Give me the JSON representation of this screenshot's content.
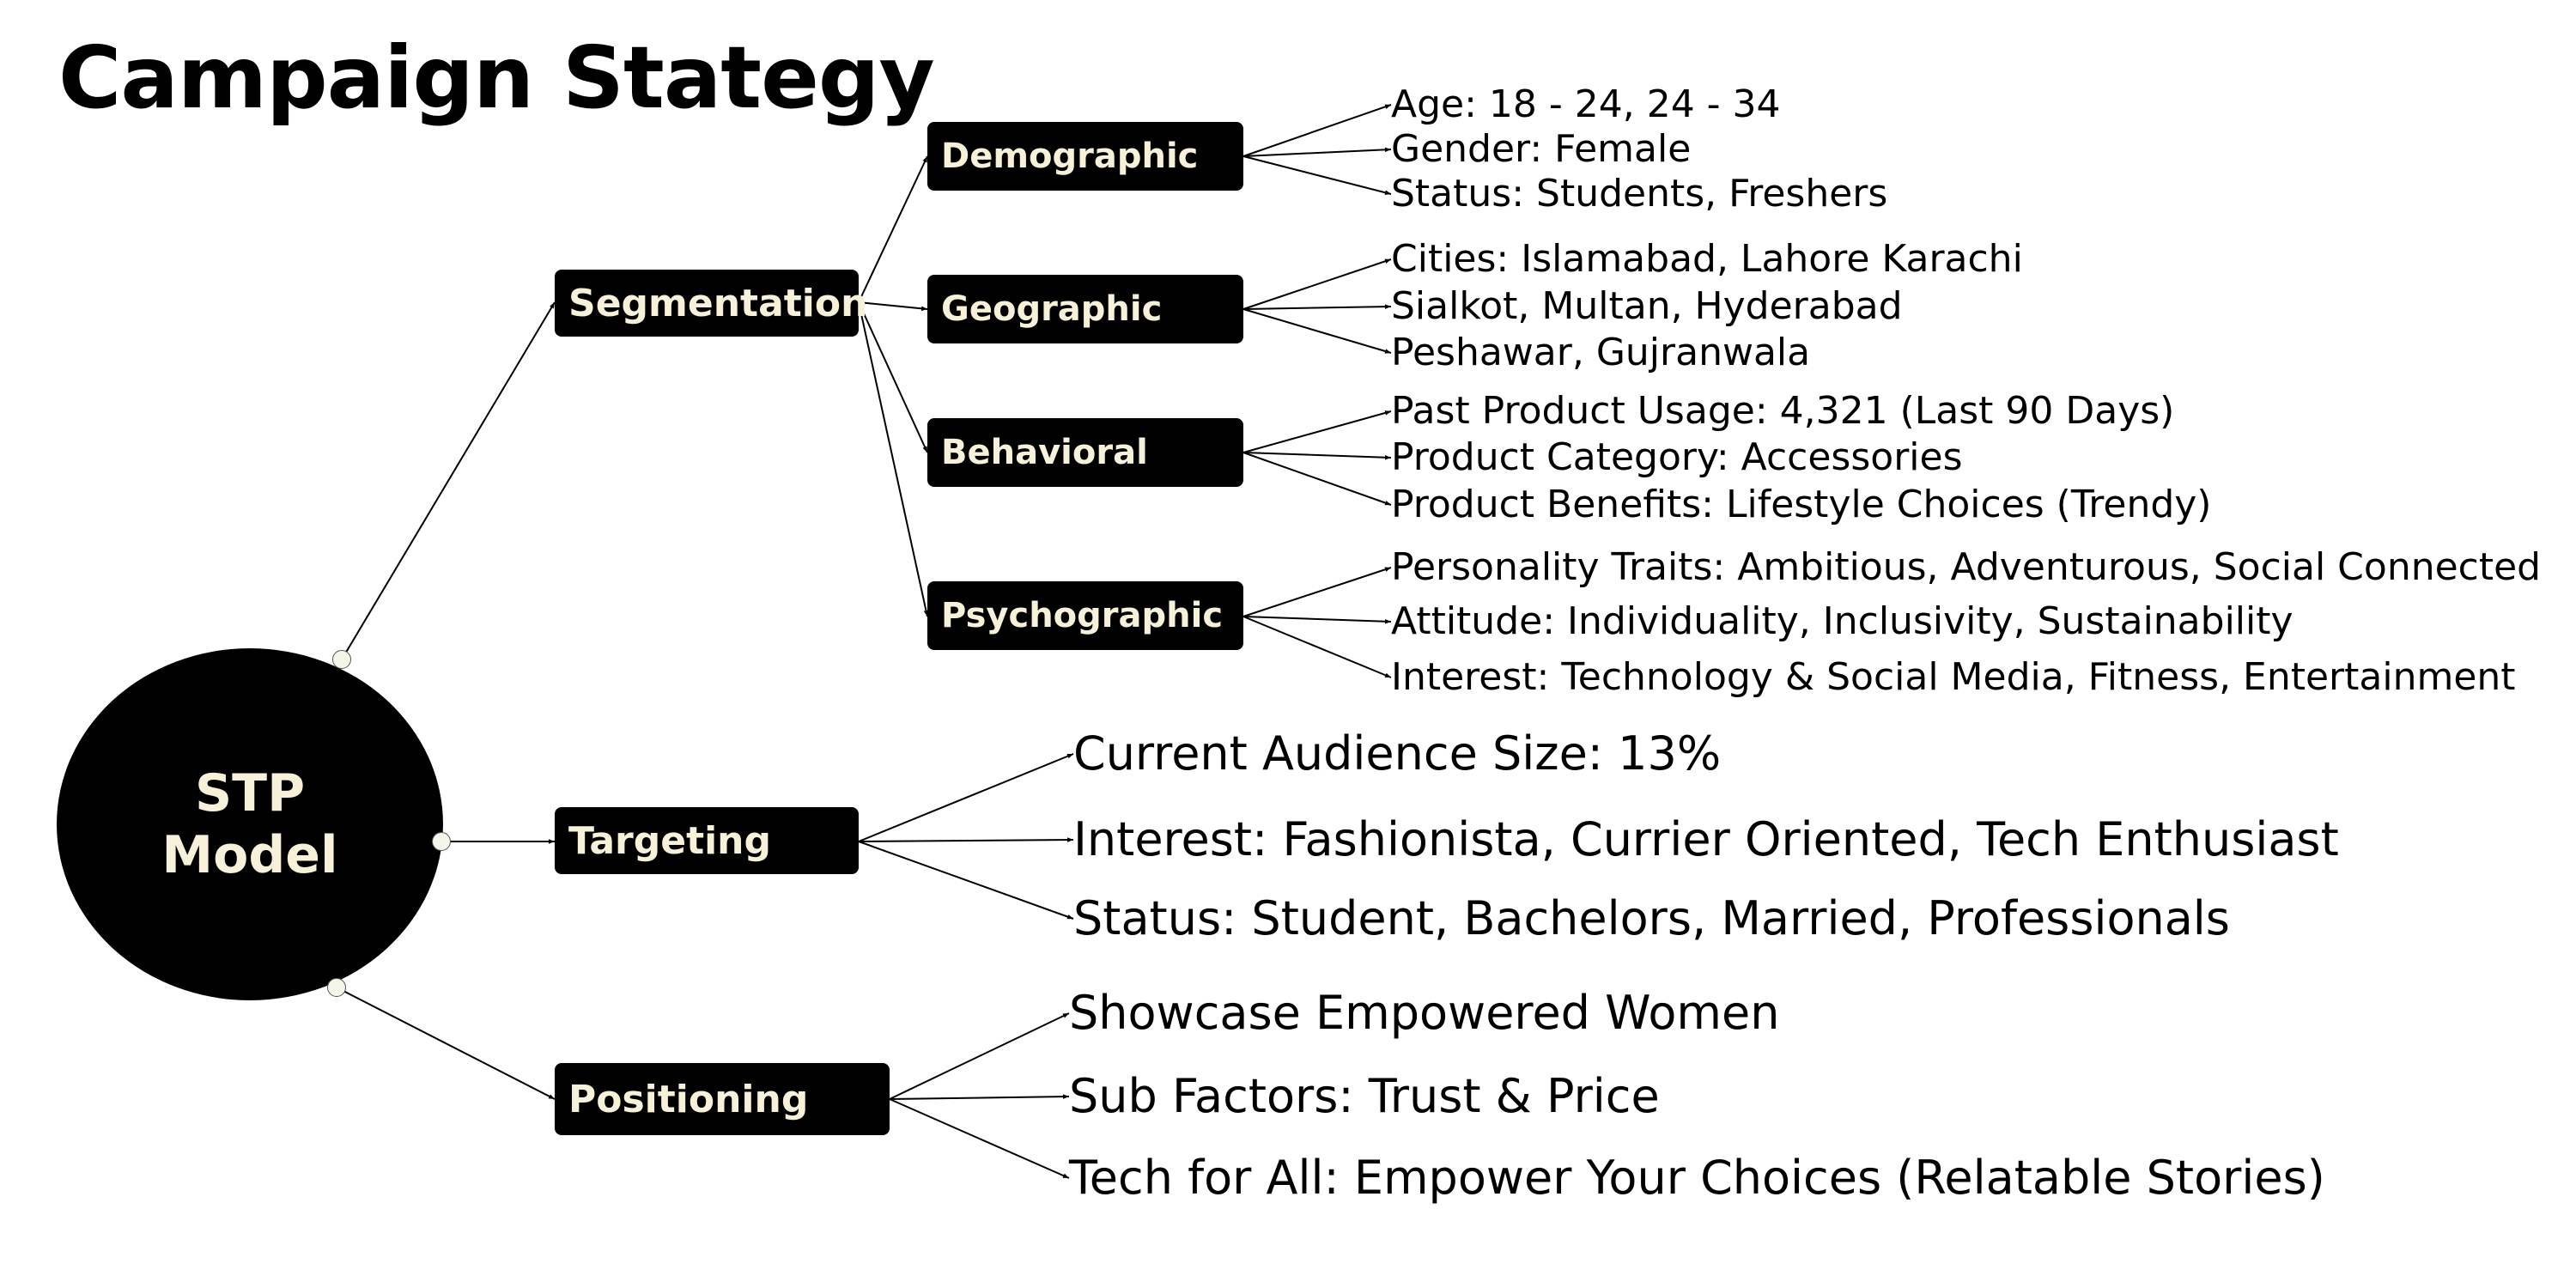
{
  "title": "Campaign Stategy",
  "root": {
    "label": "STP Model"
  },
  "segmentation": {
    "label": "Segmentation",
    "groups": [
      {
        "label": "Demographic",
        "items": [
          "Age: 18 - 24, 24 - 34",
          "Gender: Female",
          "Status: Students, Freshers"
        ]
      },
      {
        "label": "Geographic",
        "items": [
          "Cities: Islamabad, Lahore Karachi",
          "Sialkot, Multan, Hyderabad",
          "Peshawar, Gujranwala"
        ]
      },
      {
        "label": "Behavioral",
        "items": [
          "Past Product Usage: 4,321 (Last 90 Days)",
          "Product Category: Accessories",
          "Product Benefits: Lifestyle Choices (Trendy)"
        ]
      },
      {
        "label": "Psychographic",
        "items": [
          "Personality Traits: Ambitious, Adventurous, Social Connected",
          "Attitude: Individuality, Inclusivity, Sustainability",
          "Interest: Technology & Social Media, Fitness, Entertainment"
        ]
      }
    ]
  },
  "targeting": {
    "label": "Targeting",
    "items": [
      "Current Audience Size: 13%",
      "Interest: Fashionista, Currier Oriented, Tech Enthusiast",
      "Status: Student, Bachelors, Married, Professionals"
    ]
  },
  "positioning": {
    "label": "Positioning",
    "items": [
      "Showcase Empowered Women",
      "Sub Factors: Trust & Price",
      "Tech for All: Empower Your Choices (Relatable Stories)"
    ]
  }
}
